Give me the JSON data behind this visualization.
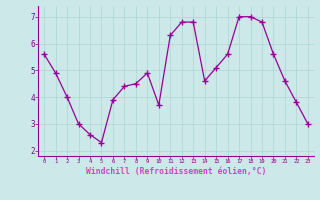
{
  "x": [
    0,
    1,
    2,
    3,
    4,
    5,
    6,
    7,
    8,
    9,
    10,
    11,
    12,
    13,
    14,
    15,
    16,
    17,
    18,
    19,
    20,
    21,
    22,
    23
  ],
  "y": [
    5.6,
    4.9,
    4.0,
    3.0,
    2.6,
    2.3,
    3.9,
    4.4,
    4.5,
    4.9,
    3.7,
    6.3,
    6.8,
    6.8,
    4.6,
    5.1,
    5.6,
    7.0,
    7.0,
    6.8,
    5.6,
    4.6,
    3.8,
    3.0
  ],
  "line_color": "#990099",
  "marker": "+",
  "marker_size": 4,
  "bg_color": "#cce8e8",
  "grid_color": "#aad4d4",
  "tick_color": "#880088",
  "xlabel": "Windchill (Refroidissement éolien,°C)",
  "xlabel_color": "#cc44cc",
  "xlabel_bg": "#cce8e8",
  "ylabel_ticks": [
    2,
    3,
    4,
    5,
    6,
    7
  ],
  "xlim": [
    -0.5,
    23.5
  ],
  "ylim": [
    1.8,
    7.4
  ],
  "xticks": [
    0,
    1,
    2,
    3,
    4,
    5,
    6,
    7,
    8,
    9,
    10,
    11,
    12,
    13,
    14,
    15,
    16,
    17,
    18,
    19,
    20,
    21,
    22,
    23
  ]
}
